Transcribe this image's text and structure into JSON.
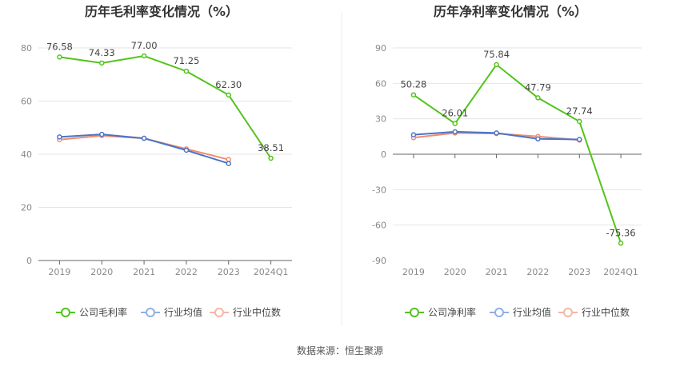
{
  "source": "数据来源：恒生聚源",
  "colors": {
    "company": "#52c41a",
    "avg": "#4a74c9",
    "median": "#f08c6c",
    "avg_legend": "#8fb0e8",
    "median_legend": "#f5b7a2"
  },
  "chart_data": [
    {
      "type": "line",
      "title": "历年毛利率变化情况（%）",
      "categories": [
        "2019",
        "2020",
        "2021",
        "2022",
        "2023",
        "2024Q1"
      ],
      "ylim": [
        0,
        80
      ],
      "yticks": [
        0,
        20,
        40,
        60,
        80
      ],
      "grid": true,
      "legend_position": "bottom",
      "series": [
        {
          "name": "公司毛利率",
          "values": [
            76.58,
            74.33,
            77.0,
            71.25,
            62.3,
            38.51
          ],
          "labels": [
            "76.58",
            "74.33",
            "77.00",
            "71.25",
            "62.30",
            "38.51"
          ]
        },
        {
          "name": "行业均值",
          "values": [
            46.5,
            47.5,
            46.0,
            41.5,
            36.5,
            null
          ]
        },
        {
          "name": "行业中位数",
          "values": [
            45.5,
            47.0,
            46.0,
            42.0,
            38.0,
            null
          ]
        }
      ]
    },
    {
      "type": "line",
      "title": "历年净利率变化情况（%）",
      "categories": [
        "2019",
        "2020",
        "2021",
        "2022",
        "2023",
        "2024Q1"
      ],
      "ylim": [
        -90,
        90
      ],
      "yticks": [
        -90,
        -60,
        -30,
        0,
        30,
        60,
        90
      ],
      "grid": true,
      "legend_position": "bottom",
      "series": [
        {
          "name": "公司净利率",
          "values": [
            50.28,
            26.01,
            75.84,
            47.79,
            27.74,
            -75.36
          ],
          "labels": [
            "50.28",
            "26.01",
            "75.84",
            "47.79",
            "27.74",
            "-75.36"
          ]
        },
        {
          "name": "行业均值",
          "values": [
            16.5,
            19.0,
            18.0,
            13.0,
            12.5,
            null
          ]
        },
        {
          "name": "行业中位数",
          "values": [
            14.0,
            18.0,
            17.5,
            15.0,
            12.0,
            null
          ]
        }
      ]
    }
  ]
}
